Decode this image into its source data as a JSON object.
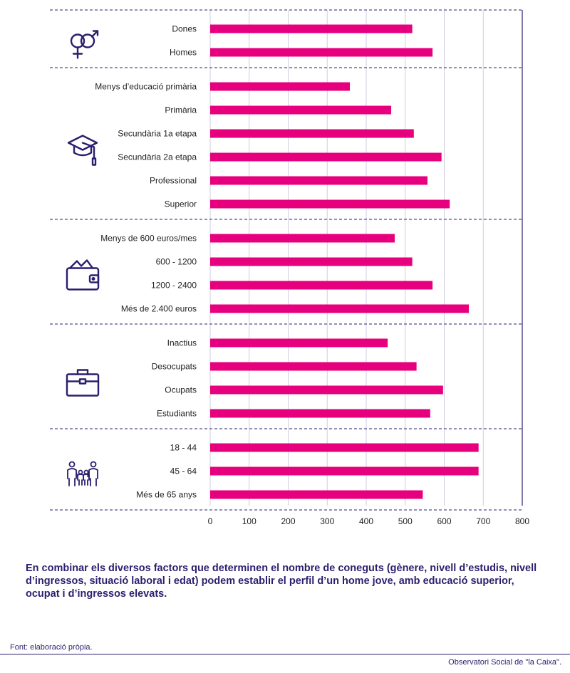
{
  "chart_data": {
    "type": "bar",
    "orientation": "horizontal",
    "xlim": [
      0,
      800
    ],
    "xticks": [
      "0",
      "100",
      "200",
      "300",
      "400",
      "500",
      "600",
      "700",
      "800"
    ],
    "bar_color": "#e6007e",
    "axis_color": "#2a1f6e",
    "grid": true,
    "groups": [
      {
        "icon": "gender-icon",
        "categories": [
          "Dones",
          "Homes"
        ],
        "values": [
          518,
          570
        ]
      },
      {
        "icon": "graduation-cap-icon",
        "categories": [
          "Menys d’educació primària",
          "Primària",
          "Secundària 1a etapa",
          "Secundària 2a etapa",
          "Professional",
          "Superior"
        ],
        "values": [
          358,
          464,
          522,
          593,
          557,
          614
        ]
      },
      {
        "icon": "wallet-icon",
        "categories": [
          "Menys de 600 euros/mes",
          "600 - 1200",
          "1200 - 2400",
          "Més de 2.400 euros"
        ],
        "values": [
          473,
          518,
          570,
          663
        ]
      },
      {
        "icon": "briefcase-icon",
        "categories": [
          "Inactius",
          "Desocupats",
          "Ocupats",
          "Estudiants"
        ],
        "values": [
          455,
          529,
          597,
          564
        ]
      },
      {
        "icon": "family-icon",
        "categories": [
          "18 - 44",
          "45 - 64",
          "Més de 65 anys"
        ],
        "values": [
          688,
          688,
          545
        ]
      }
    ]
  },
  "summary": "En combinar els diversos factors que determinen el nombre de coneguts (gènere, nivell d’estudis, nivell d’ingressos, situació laboral i edat) podem establir el perfil d’un home jove, amb educació superior, ocupat i d’ingressos elevats.",
  "source": "Font: elaboració pròpia.",
  "credit": "Observatori Social de \"la Caixa\"."
}
